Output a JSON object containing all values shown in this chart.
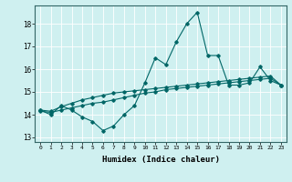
{
  "xlabel": "Humidex (Indice chaleur)",
  "xlim": [
    -0.5,
    23.5
  ],
  "ylim": [
    12.8,
    18.8
  ],
  "yticks": [
    13,
    14,
    15,
    16,
    17,
    18
  ],
  "xticks": [
    0,
    1,
    2,
    3,
    4,
    5,
    6,
    7,
    8,
    9,
    10,
    11,
    12,
    13,
    14,
    15,
    16,
    17,
    18,
    19,
    20,
    21,
    22,
    23
  ],
  "background_color": "#cff0f0",
  "grid_color": "#ffffff",
  "line_color": "#006666",
  "series1": [
    14.2,
    14.0,
    14.4,
    14.2,
    13.9,
    13.7,
    13.3,
    13.5,
    14.0,
    14.4,
    15.4,
    16.5,
    16.2,
    17.2,
    18.0,
    18.5,
    16.6,
    16.6,
    15.3,
    15.3,
    15.4,
    16.1,
    15.5,
    15.3
  ],
  "series2": [
    14.15,
    14.1,
    14.2,
    14.3,
    14.4,
    14.5,
    14.55,
    14.65,
    14.75,
    14.85,
    14.95,
    15.0,
    15.1,
    15.15,
    15.2,
    15.25,
    15.3,
    15.35,
    15.4,
    15.45,
    15.5,
    15.55,
    15.6,
    15.3
  ],
  "series3": [
    14.2,
    14.15,
    14.35,
    14.5,
    14.65,
    14.75,
    14.85,
    14.95,
    15.0,
    15.05,
    15.1,
    15.15,
    15.2,
    15.25,
    15.3,
    15.35,
    15.4,
    15.45,
    15.5,
    15.55,
    15.6,
    15.65,
    15.7,
    15.3
  ]
}
